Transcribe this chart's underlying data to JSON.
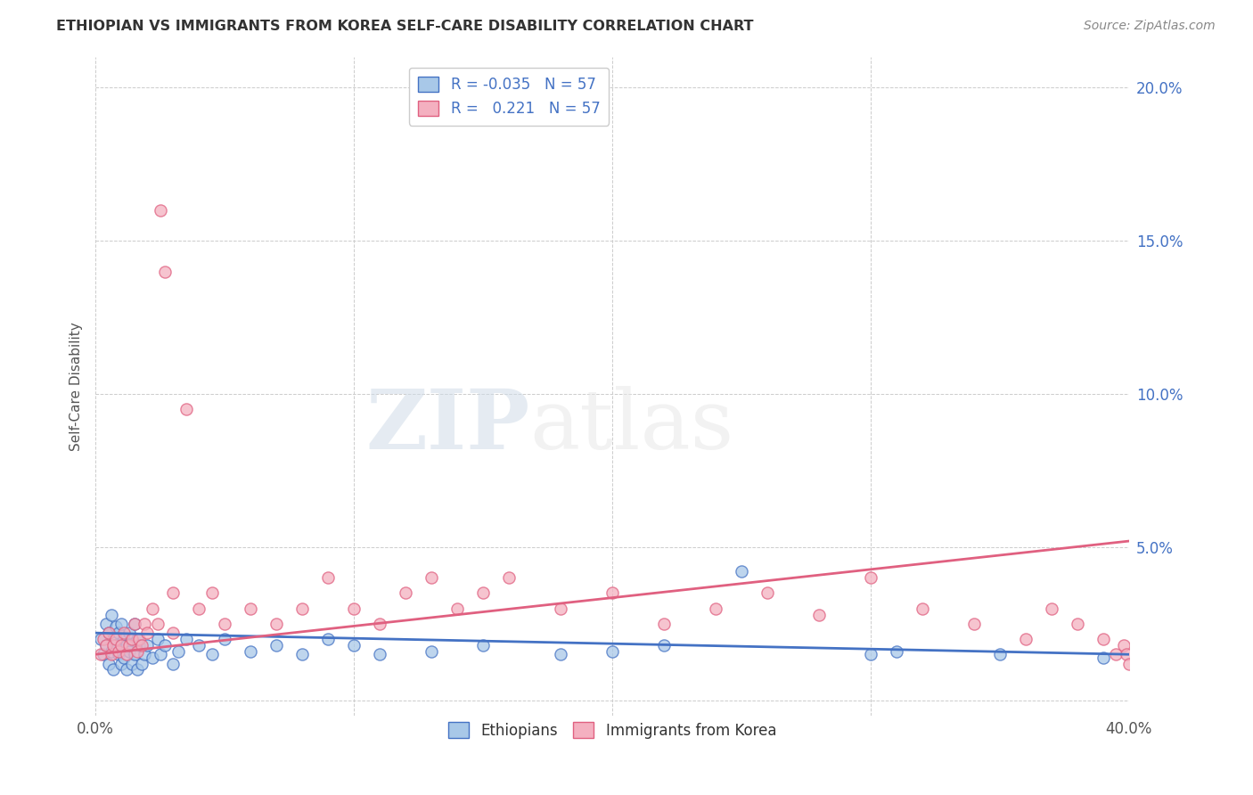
{
  "title": "ETHIOPIAN VS IMMIGRANTS FROM KOREA SELF-CARE DISABILITY CORRELATION CHART",
  "source": "Source: ZipAtlas.com",
  "ylabel": "Self-Care Disability",
  "xlim": [
    0.0,
    0.4
  ],
  "ylim": [
    -0.005,
    0.21
  ],
  "yticks": [
    0.0,
    0.05,
    0.1,
    0.15,
    0.2
  ],
  "ytick_labels": [
    "",
    "5.0%",
    "10.0%",
    "15.0%",
    "20.0%"
  ],
  "xticks": [
    0.0,
    0.1,
    0.2,
    0.3,
    0.4
  ],
  "xtick_labels": [
    "0.0%",
    "",
    "",
    "",
    "40.0%"
  ],
  "legend_R_ethiopian": "-0.035",
  "legend_N_ethiopian": "57",
  "legend_R_korean": "0.221",
  "legend_N_korean": "57",
  "color_ethiopian": "#a8c8e8",
  "color_korean": "#f4b0c0",
  "color_trend_ethiopian": "#4472c4",
  "color_trend_korean": "#e06080",
  "color_right_axis": "#4472c4",
  "background_color": "#ffffff",
  "ethiopian_x": [
    0.002,
    0.003,
    0.004,
    0.004,
    0.005,
    0.005,
    0.006,
    0.006,
    0.007,
    0.007,
    0.008,
    0.008,
    0.009,
    0.009,
    0.01,
    0.01,
    0.011,
    0.011,
    0.012,
    0.012,
    0.013,
    0.013,
    0.014,
    0.015,
    0.015,
    0.016,
    0.016,
    0.017,
    0.018,
    0.019,
    0.02,
    0.022,
    0.024,
    0.025,
    0.027,
    0.03,
    0.032,
    0.035,
    0.04,
    0.045,
    0.05,
    0.06,
    0.07,
    0.08,
    0.09,
    0.1,
    0.11,
    0.13,
    0.15,
    0.18,
    0.2,
    0.22,
    0.25,
    0.3,
    0.31,
    0.35,
    0.39
  ],
  "ethiopian_y": [
    0.02,
    0.015,
    0.018,
    0.025,
    0.012,
    0.022,
    0.016,
    0.028,
    0.01,
    0.02,
    0.018,
    0.024,
    0.015,
    0.022,
    0.012,
    0.025,
    0.014,
    0.02,
    0.01,
    0.018,
    0.016,
    0.022,
    0.012,
    0.015,
    0.025,
    0.01,
    0.02,
    0.018,
    0.012,
    0.015,
    0.018,
    0.014,
    0.02,
    0.015,
    0.018,
    0.012,
    0.016,
    0.02,
    0.018,
    0.015,
    0.02,
    0.016,
    0.018,
    0.015,
    0.02,
    0.018,
    0.015,
    0.016,
    0.018,
    0.015,
    0.016,
    0.018,
    0.042,
    0.015,
    0.016,
    0.015,
    0.014
  ],
  "korean_x": [
    0.002,
    0.003,
    0.004,
    0.005,
    0.006,
    0.007,
    0.008,
    0.009,
    0.01,
    0.011,
    0.012,
    0.013,
    0.014,
    0.015,
    0.016,
    0.017,
    0.018,
    0.019,
    0.02,
    0.022,
    0.024,
    0.025,
    0.027,
    0.03,
    0.03,
    0.035,
    0.04,
    0.045,
    0.05,
    0.06,
    0.07,
    0.08,
    0.09,
    0.1,
    0.11,
    0.12,
    0.13,
    0.14,
    0.15,
    0.16,
    0.18,
    0.2,
    0.22,
    0.24,
    0.26,
    0.28,
    0.3,
    0.32,
    0.34,
    0.36,
    0.37,
    0.38,
    0.39,
    0.395,
    0.398,
    0.399,
    0.4
  ],
  "korean_y": [
    0.015,
    0.02,
    0.018,
    0.022,
    0.015,
    0.018,
    0.02,
    0.016,
    0.018,
    0.022,
    0.015,
    0.018,
    0.02,
    0.025,
    0.016,
    0.02,
    0.018,
    0.025,
    0.022,
    0.03,
    0.025,
    0.16,
    0.14,
    0.022,
    0.035,
    0.095,
    0.03,
    0.035,
    0.025,
    0.03,
    0.025,
    0.03,
    0.04,
    0.03,
    0.025,
    0.035,
    0.04,
    0.03,
    0.035,
    0.04,
    0.03,
    0.035,
    0.025,
    0.03,
    0.035,
    0.028,
    0.04,
    0.03,
    0.025,
    0.02,
    0.03,
    0.025,
    0.02,
    0.015,
    0.018,
    0.015,
    0.012
  ],
  "trend_eth_x0": 0.0,
  "trend_eth_x1": 0.4,
  "trend_eth_y0": 0.022,
  "trend_eth_y1": 0.015,
  "trend_kor_x0": 0.0,
  "trend_kor_x1": 0.4,
  "trend_kor_y0": 0.015,
  "trend_kor_y1": 0.052
}
